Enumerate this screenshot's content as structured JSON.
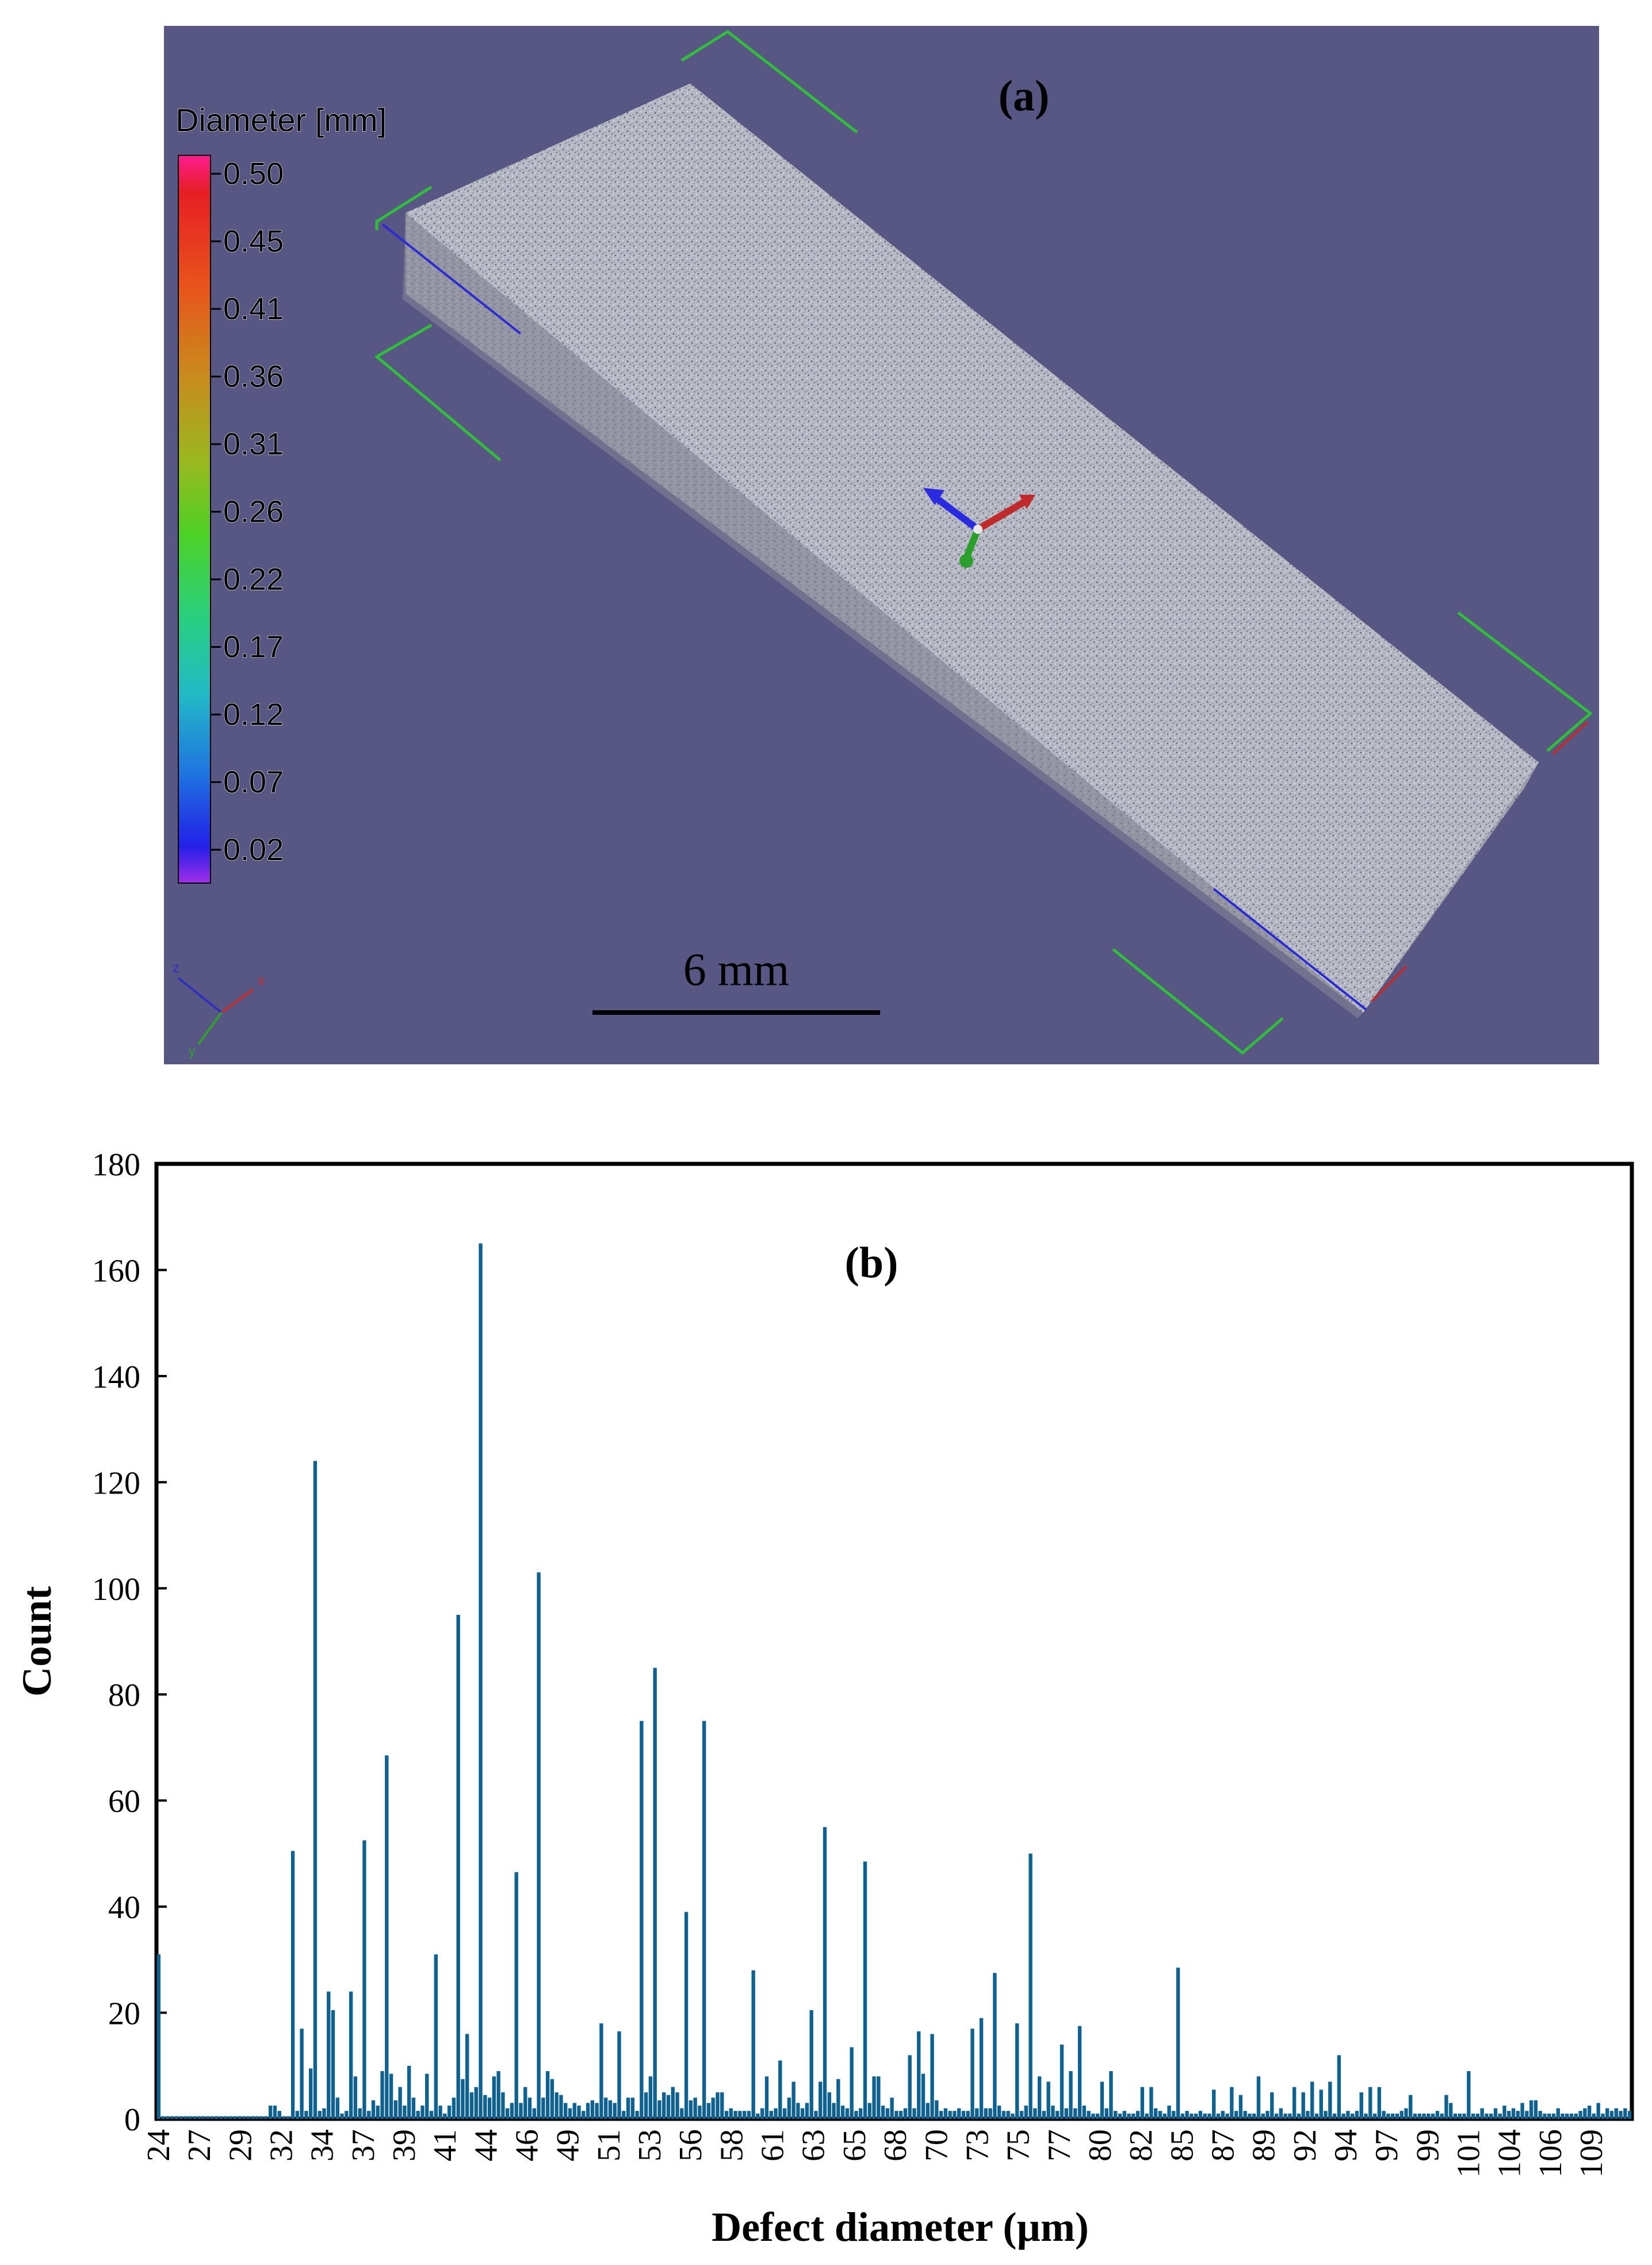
{
  "panel_a": {
    "label": "(a)",
    "legend": {
      "title": "Diameter [mm]",
      "ticks": [
        "0.50",
        "0.45",
        "0.41",
        "0.36",
        "0.31",
        "0.26",
        "0.22",
        "0.17",
        "0.12",
        "0.07",
        "0.02"
      ]
    },
    "scale_bar_label": "6 mm",
    "background_color": "#585682"
  },
  "panel_b": {
    "label": "(b)",
    "chart_data": {
      "type": "bar",
      "xlabel": "Defect diameter (µm)",
      "ylabel": "Count",
      "ylim": [
        0,
        180
      ],
      "yticks": [
        0,
        20,
        40,
        60,
        80,
        100,
        120,
        140,
        160,
        180
      ],
      "x_tick_labels": [
        "24",
        "27",
        "29",
        "32",
        "34",
        "37",
        "39",
        "41",
        "44",
        "46",
        "49",
        "51",
        "53",
        "56",
        "58",
        "61",
        "63",
        "65",
        "68",
        "70",
        "73",
        "75",
        "77",
        "80",
        "82",
        "85",
        "87",
        "89",
        "92",
        "94",
        "97",
        "99",
        "101",
        "104",
        "106",
        "109"
      ],
      "bar_color": "#0f6190",
      "values": [
        31,
        0.5,
        0.5,
        0.5,
        0.5,
        0.5,
        0.5,
        0.5,
        0.5,
        0.5,
        0.5,
        0.5,
        0.5,
        0.5,
        0.5,
        0.5,
        0.5,
        0.5,
        0.5,
        0.5,
        0.5,
        0.5,
        0.5,
        0.5,
        0.5,
        2.5,
        2.5,
        1.5,
        0.5,
        0.5,
        50.5,
        1.5,
        17,
        1.5,
        9.5,
        124,
        1.5,
        2,
        24,
        20.5,
        4,
        1,
        1.5,
        24,
        8,
        2,
        52.5,
        1.5,
        3.5,
        2.5,
        9,
        68.5,
        8.5,
        3.5,
        6,
        2.5,
        10,
        4,
        1.5,
        2.5,
        8.5,
        1.5,
        31,
        2.5,
        1,
        2.5,
        4,
        95,
        7.5,
        16,
        5,
        6,
        165,
        4.5,
        4,
        8,
        9,
        5,
        2,
        3,
        46.5,
        3,
        6,
        4,
        2,
        103,
        4,
        9,
        7.5,
        5,
        4.5,
        3,
        2,
        3,
        2.5,
        1.5,
        3,
        3.5,
        3,
        18,
        4,
        3.5,
        3,
        16.5,
        1.5,
        4,
        4,
        1.5,
        75,
        5,
        8,
        85,
        3.5,
        5,
        4.5,
        6,
        5,
        2,
        39,
        3.5,
        4,
        2.5,
        75,
        3,
        4,
        5,
        5,
        1.5,
        2,
        1.5,
        1.5,
        1.5,
        1.5,
        28,
        1,
        2,
        8,
        1.5,
        2,
        11,
        2,
        4,
        7,
        3,
        2,
        3,
        20.5,
        1.5,
        7,
        55,
        5,
        3,
        7.5,
        2.5,
        2,
        13.5,
        1.5,
        2,
        48.5,
        3,
        8,
        8,
        2.5,
        2,
        4,
        1.5,
        1.5,
        2,
        12,
        2,
        16.5,
        8.5,
        3,
        16,
        3.5,
        1.5,
        2,
        1.5,
        1.5,
        2,
        1.5,
        1.5,
        17,
        2,
        19,
        2,
        2,
        27.5,
        2.5,
        1.5,
        1.5,
        1,
        18,
        1.5,
        2.5,
        50,
        2,
        8,
        1.5,
        7,
        2.5,
        1.5,
        14,
        2,
        9,
        2,
        17.5,
        2.5,
        1.5,
        1,
        1,
        7,
        2,
        9,
        1.5,
        1,
        1.5,
        1,
        1,
        1.5,
        6,
        1,
        6,
        2,
        1.5,
        1,
        2.5,
        1.5,
        28.5,
        1,
        1.5,
        1,
        1,
        1.5,
        1,
        1,
        5.5,
        1,
        1.5,
        1,
        6,
        1.5,
        4.5,
        1.5,
        1,
        1,
        8,
        1,
        1.5,
        5,
        1,
        2,
        1,
        1,
        6,
        1,
        5,
        1.5,
        7,
        1,
        5.5,
        1.5,
        7,
        1,
        12,
        1,
        1.5,
        1,
        1.5,
        5,
        1,
        6,
        1,
        6,
        1.5,
        1,
        1,
        1,
        1.5,
        2,
        4.5,
        1,
        1,
        1,
        1,
        1,
        1.5,
        1,
        4.5,
        3,
        1,
        1,
        1,
        9,
        1,
        1,
        2,
        1,
        1,
        2,
        1,
        2.5,
        1.5,
        2,
        1.5,
        3,
        1.5,
        3.5,
        3.5,
        1.5,
        1,
        1,
        1,
        2,
        1,
        1,
        1,
        1,
        1.5,
        2,
        2.5,
        1,
        3,
        1,
        2,
        1.5,
        2,
        1.5,
        2,
        1.5
      ]
    }
  }
}
